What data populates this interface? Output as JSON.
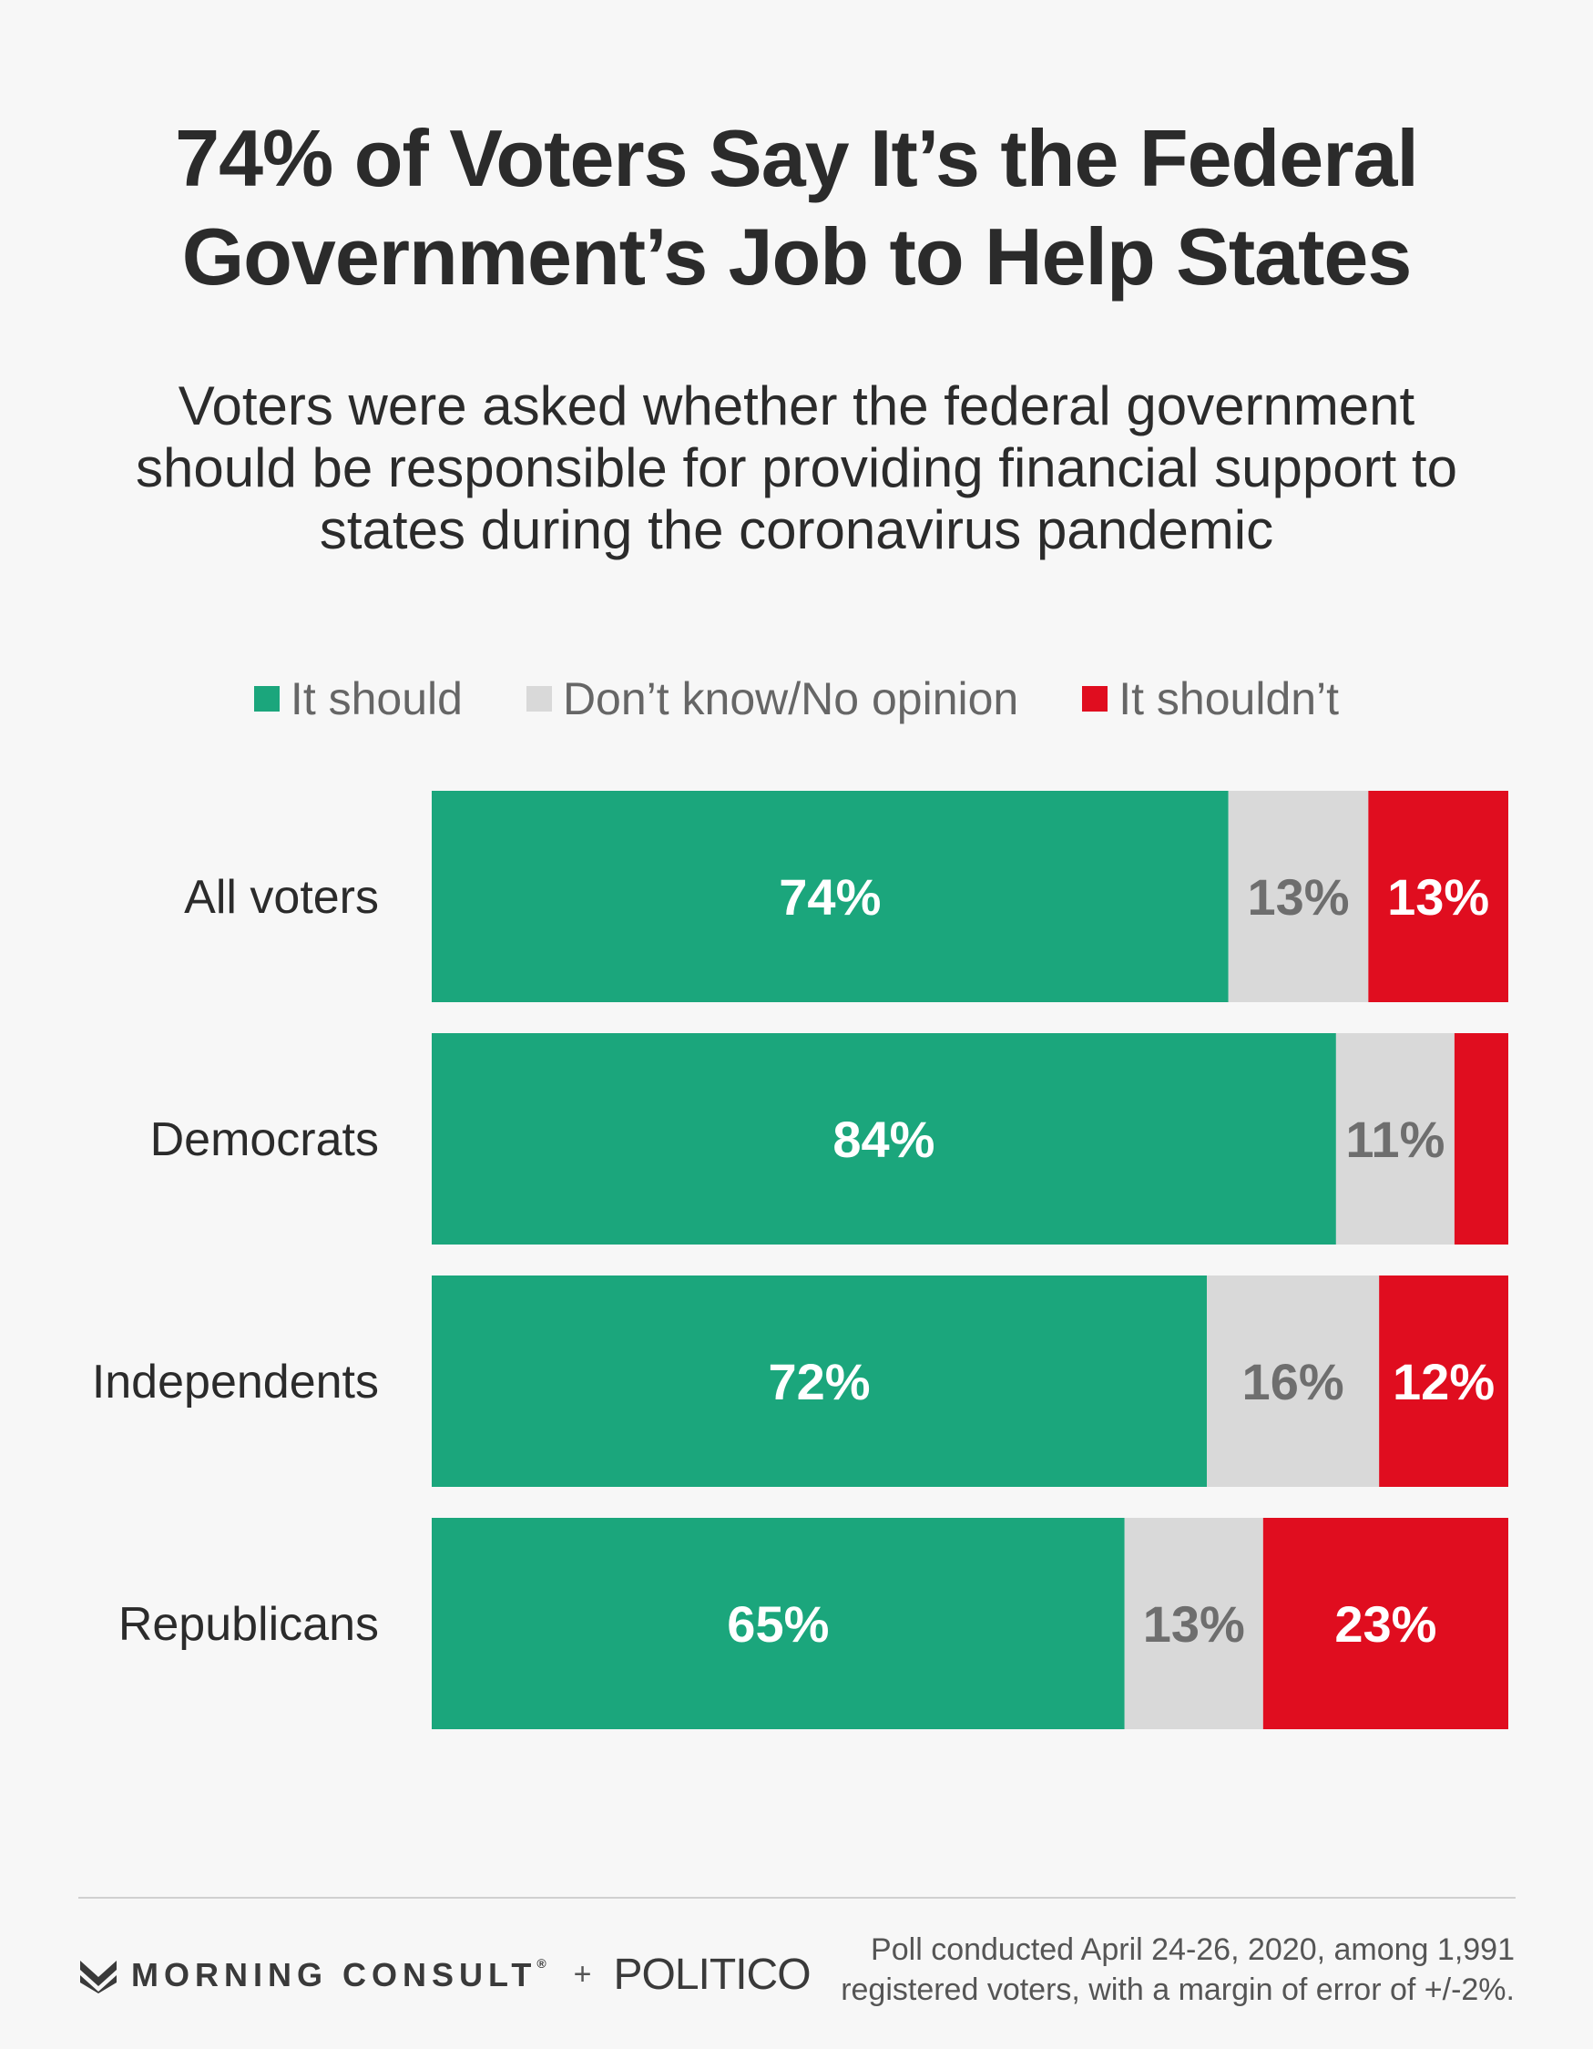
{
  "chart_data": {
    "type": "bar",
    "orientation": "horizontal",
    "stacked": true,
    "title": "74% of Voters Say It’s the Federal Government’s Job to Help States",
    "subtitle": "Voters were asked whether the federal government should be responsible for providing financial support to states during the coronavirus pandemic",
    "categories": [
      "All voters",
      "Democrats",
      "Independents",
      "Republicans"
    ],
    "series": [
      {
        "name": "It should",
        "color": "#1ba67c",
        "values": [
          74,
          84,
          72,
          65
        ],
        "labels": [
          "74%",
          "84%",
          "72%",
          "65%"
        ]
      },
      {
        "name": "Don’t know/No opinion",
        "color": "#d9d9d9",
        "values": [
          13,
          11,
          16,
          13
        ],
        "labels": [
          "13%",
          "11%",
          "16%",
          "13%"
        ]
      },
      {
        "name": "It shouldn’t",
        "color": "#e00d1f",
        "values": [
          13,
          5,
          12,
          23
        ],
        "labels": [
          "13%",
          "",
          "12%",
          "23%"
        ]
      }
    ],
    "xlabel": "",
    "ylabel": "",
    "grid": false,
    "legend_position": "top"
  },
  "footer": {
    "brand1": "MORNING CONSULT",
    "brand1_mark": "®",
    "plus": "+",
    "brand2": "POLITICO",
    "note_line1": "Poll conducted April 24-26, 2020, among 1,991",
    "note_line2": "registered voters, with a margin of error of +/-2%."
  }
}
